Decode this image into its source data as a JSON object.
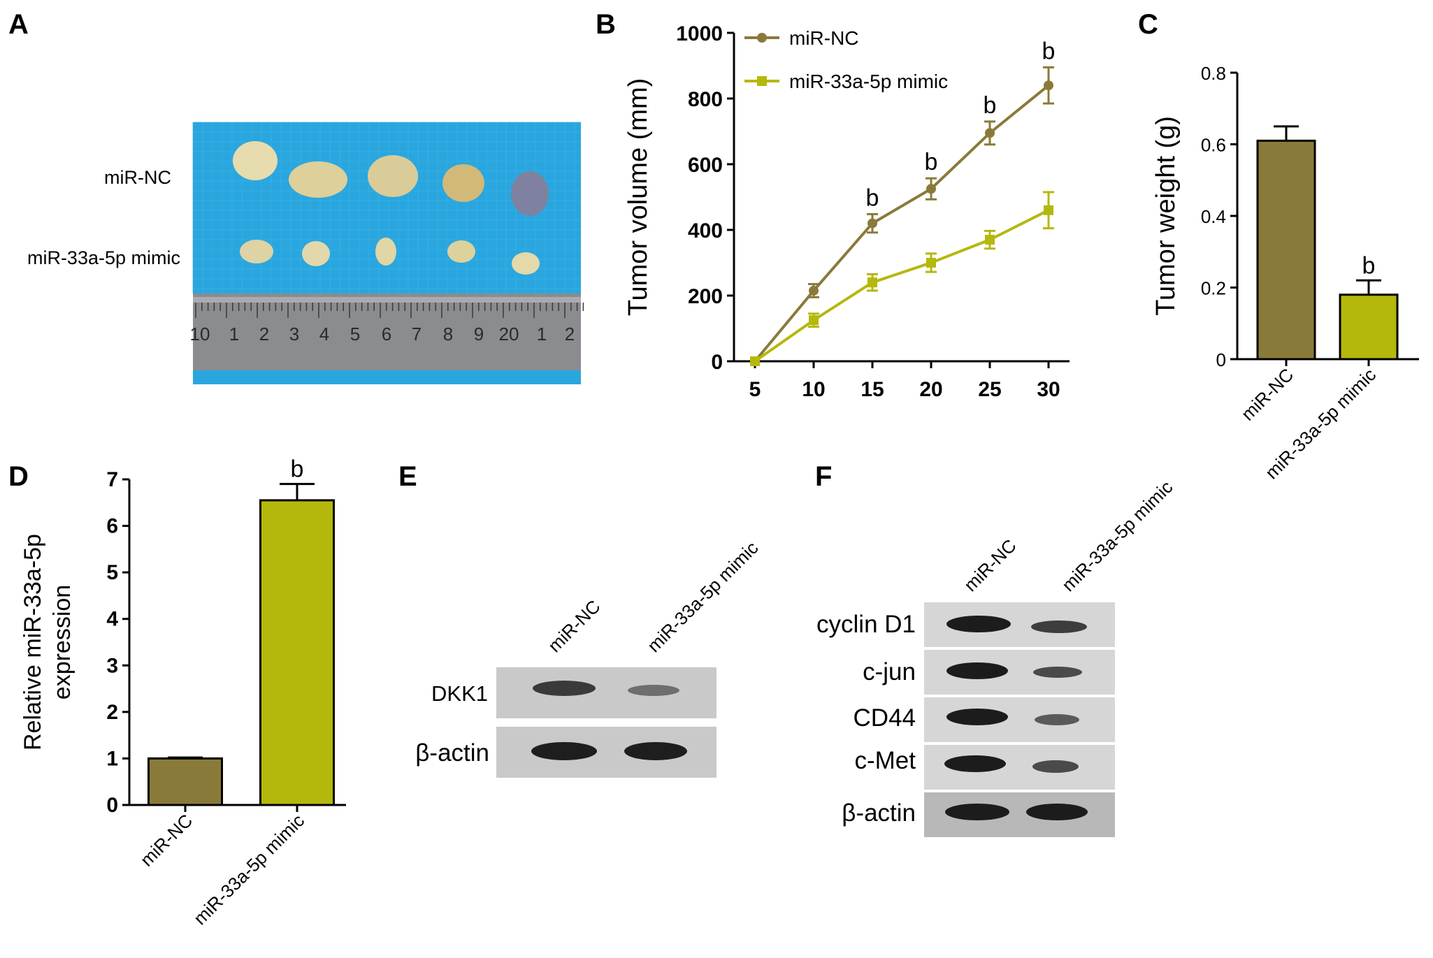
{
  "panels": {
    "A": {
      "letter": "A",
      "row_labels": [
        "miR-NC",
        "miR-33a-5p mimic"
      ],
      "ruler_labels": [
        "10",
        "1",
        "2",
        "3",
        "4",
        "5",
        "6",
        "7",
        "8",
        "9",
        "20",
        "1",
        "2"
      ]
    },
    "B": {
      "letter": "B"
    },
    "C": {
      "letter": "C"
    },
    "D": {
      "letter": "D"
    },
    "E": {
      "letter": "E",
      "lanes": [
        "miR-NC",
        "miR-33a-5p mimic"
      ],
      "blots": [
        "DKK1",
        "β-actin"
      ]
    },
    "F": {
      "letter": "F",
      "lanes": [
        "miR-NC",
        "miR-33a-5p mimic"
      ],
      "blots": [
        "cyclin D1",
        "c-jun",
        "CD44",
        "c-Met",
        "β-actin"
      ]
    }
  },
  "colors": {
    "miR_NC": "#8a7a3a",
    "mimic": "#b5b80c",
    "tray_blue": "#2aa6de",
    "ruler": "#8a8c90"
  },
  "chart_data": [
    {
      "panel": "B",
      "type": "line",
      "x": [
        5,
        10,
        15,
        20,
        25,
        30
      ],
      "xlabel": "",
      "ylabel": "Tumor volume (mm)",
      "ylim": [
        0,
        1000
      ],
      "yticks": [
        0,
        200,
        400,
        600,
        800,
        1000
      ],
      "legend": "top-left",
      "series": [
        {
          "name": "miR-NC",
          "values": [
            0,
            215,
            420,
            525,
            695,
            840
          ],
          "err": [
            0,
            20,
            28,
            32,
            35,
            55
          ],
          "annotations": [
            "",
            "",
            "b",
            "b",
            "b",
            "b"
          ]
        },
        {
          "name": "miR-33a-5p mimic",
          "values": [
            0,
            125,
            240,
            300,
            370,
            460
          ],
          "err": [
            0,
            20,
            25,
            28,
            27,
            55
          ]
        }
      ]
    },
    {
      "panel": "C",
      "type": "bar",
      "categories": [
        "miR-NC",
        "miR-33a-5p mimic"
      ],
      "values": [
        0.61,
        0.18
      ],
      "err": [
        0.04,
        0.04
      ],
      "annotations": [
        "",
        "b"
      ],
      "ylabel": "Tumor weight (g)",
      "ylim": [
        0,
        0.8
      ],
      "yticks": [
        "0",
        "0.2",
        "0.4",
        "0.6",
        "0.8"
      ]
    },
    {
      "panel": "D",
      "type": "bar",
      "categories": [
        "miR-NC",
        "miR-33a-5p mimic"
      ],
      "values": [
        1.0,
        6.55
      ],
      "err": [
        0.02,
        0.35
      ],
      "annotations": [
        "",
        "b"
      ],
      "ylabel_lines": [
        "Relative  miR-33a-5p",
        "expression"
      ],
      "ylim": [
        0,
        7
      ],
      "yticks": [
        "0",
        "1",
        "2",
        "3",
        "4",
        "5",
        "6",
        "7"
      ]
    }
  ]
}
